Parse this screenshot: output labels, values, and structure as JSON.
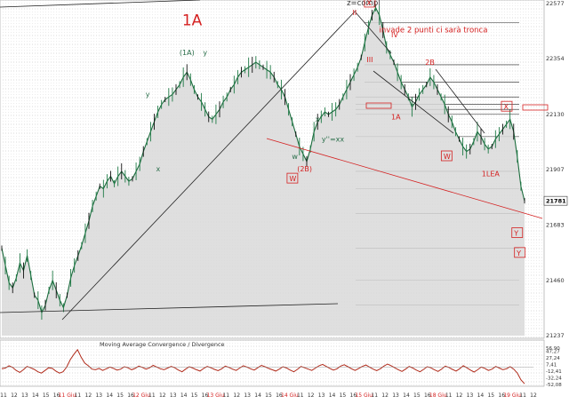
{
  "chart_data": [
    {
      "type": "line",
      "title": "",
      "price_axis": {
        "ticks": [
          "22577",
          "22354",
          "22130",
          "21907",
          "21683",
          "21460",
          "21237"
        ],
        "ylim": [
          21237,
          22577
        ],
        "last_price_label": "21781"
      },
      "date_axis": {
        "ticks": [
          "11",
          "12",
          "13",
          "14",
          "15",
          "16",
          "11 Giu",
          "11",
          "12",
          "13",
          "14",
          "15",
          "16",
          "12 Giu",
          "11",
          "12",
          "13",
          "14",
          "15",
          "16",
          "13 Giu",
          "11",
          "12",
          "13",
          "14",
          "15",
          "16",
          "14 Giu",
          "11",
          "12",
          "13",
          "14",
          "15",
          "16",
          "15 Giu",
          "11",
          "12",
          "13",
          "14",
          "15",
          "16",
          "18 Giu",
          "11",
          "12",
          "13",
          "14",
          "15",
          "16",
          "19 Giu",
          "11",
          "12"
        ]
      },
      "series": [
        {
          "values": [
            21590,
            21520,
            21450,
            21430,
            21470,
            21530,
            21500,
            21560,
            21480,
            21400,
            21380,
            21330,
            21360,
            21420,
            21460,
            21420,
            21380,
            21350,
            21400,
            21470,
            21520,
            21560,
            21600,
            21650,
            21700,
            21760,
            21800,
            21840,
            21830,
            21860,
            21880,
            21850,
            21880,
            21900,
            21880,
            21860,
            21870,
            21900,
            21930,
            21980,
            22020,
            22060,
            22100,
            22140,
            22170,
            22190,
            22200,
            22210,
            22230,
            22250,
            22280,
            22300,
            22270,
            22230,
            22200,
            22180,
            22150,
            22120,
            22110,
            22130,
            22150,
            22180,
            22200,
            22230,
            22250,
            22280,
            22300,
            22310,
            22320,
            22330,
            22340,
            22330,
            22320,
            22310,
            22300,
            22280,
            22250,
            22230,
            22200,
            22150,
            22100,
            22050,
            22000,
            21970,
            21940,
            21990,
            22060,
            22100,
            22120,
            22140,
            22130,
            22140,
            22150,
            22170,
            22200,
            22230,
            22260,
            22290,
            22320,
            22360,
            22420,
            22480,
            22530,
            22560,
            22530,
            22470,
            22400,
            22370,
            22340,
            22300,
            22260,
            22230,
            22200,
            22160,
            22180,
            22210,
            22230,
            22250,
            22280,
            22260,
            22230,
            22200,
            22170,
            22130,
            22100,
            22060,
            22030,
            22000,
            21980,
            21990,
            22020,
            22060,
            22040,
            22010,
            21990,
            22000,
            22030,
            22050,
            22070,
            22090,
            22110,
            22060,
            21960,
            21840,
            21781
          ],
          "unit": "points"
        }
      ],
      "horizontal_levels": [
        22500,
        22330,
        22260,
        22200,
        22170,
        22150,
        22130,
        22040,
        21900,
        21830,
        21730,
        21590,
        21460,
        21360
      ],
      "annotations": [
        {
          "text": "1A",
          "x": 0.345,
          "y": 22490
        },
        {
          "text": "(1A)",
          "x": 0.34,
          "y": 22370
        },
        {
          "text": "y",
          "x": 0.385,
          "y": 22370
        },
        {
          "text": "y",
          "x": 0.275,
          "y": 22200
        },
        {
          "text": "x",
          "x": 0.295,
          "y": 21900
        },
        {
          "text": "z=compl",
          "x": 0.66,
          "y": 22570
        },
        {
          "text": "X",
          "x": 0.698,
          "y": 22570
        },
        {
          "text": "II",
          "x": 0.671,
          "y": 22530
        },
        {
          "text": "invade 2 punti ci sarà tronca",
          "x": 0.722,
          "y": 22460
        },
        {
          "text": "IV",
          "x": 0.745,
          "y": 22440
        },
        {
          "text": "III",
          "x": 0.698,
          "y": 22340
        },
        {
          "text": "2B",
          "x": 0.81,
          "y": 22330
        },
        {
          "text": "1A",
          "x": 0.745,
          "y": 22110
        },
        {
          "text": "X",
          "x": 0.96,
          "y": 22150
        },
        {
          "text": "x'",
          "x": 0.6,
          "y": 22100
        },
        {
          "text": "w",
          "x": 0.555,
          "y": 21950
        },
        {
          "text": "y''=xx",
          "x": 0.612,
          "y": 22020
        },
        {
          "text": "(2B)",
          "x": 0.565,
          "y": 21900
        },
        {
          "text": "W",
          "x": 0.845,
          "y": 21950
        },
        {
          "text": "1LEA",
          "x": 0.918,
          "y": 21880
        },
        {
          "text": "W",
          "x": 0.55,
          "y": 21860
        },
        {
          "text": "Y",
          "x": 0.98,
          "y": 21640
        },
        {
          "text": "Y",
          "x": 0.985,
          "y": 21560
        }
      ]
    },
    {
      "type": "line",
      "title": "Moving Average Convergence / Divergence",
      "y_ticks": [
        "56,90",
        "47,27",
        "27,24",
        "7,41",
        "-12,41",
        "-32,24",
        "-52,08"
      ],
      "ylim": [
        -52.08,
        56.9
      ],
      "series": [
        {
          "values": [
            -5,
            -3,
            4,
            -1,
            -10,
            -16,
            -8,
            2,
            -2,
            -7,
            -14,
            -18,
            -10,
            -2,
            -4,
            -12,
            -18,
            -14,
            0,
            22,
            38,
            52,
            30,
            12,
            4,
            -6,
            -8,
            -4,
            -10,
            -5,
            0,
            -4,
            -9,
            -6,
            1,
            -2,
            -8,
            -4,
            3,
            -1,
            -6,
            -2,
            5,
            0,
            -5,
            -8,
            -3,
            2,
            -2,
            -9,
            -14,
            -6,
            1,
            -3,
            -8,
            -12,
            -4,
            2,
            -2,
            -7,
            -11,
            -5,
            3,
            -1,
            -6,
            -10,
            -3,
            4,
            0,
            -5,
            -9,
            -2,
            5,
            1,
            -4,
            -8,
            -12,
            -6,
            1,
            -3,
            -9,
            -14,
            -7,
            2,
            -2,
            -6,
            -10,
            -3,
            4,
            8,
            2,
            -4,
            -9,
            -5,
            3,
            7,
            1,
            -5,
            -10,
            -4,
            2,
            6,
            0,
            -6,
            -11,
            -5,
            3,
            9,
            4,
            -2,
            -8,
            -13,
            -6,
            2,
            -3,
            -9,
            -14,
            -7,
            1,
            -2,
            -8,
            -13,
            -6,
            3,
            -1,
            -7,
            -12,
            -5,
            4,
            -2,
            -9,
            -15,
            -8,
            0,
            -4,
            -10,
            -6,
            2,
            -3,
            -8,
            -5,
            1,
            -6,
            -18,
            -38,
            -50
          ]
        }
      ]
    }
  ]
}
